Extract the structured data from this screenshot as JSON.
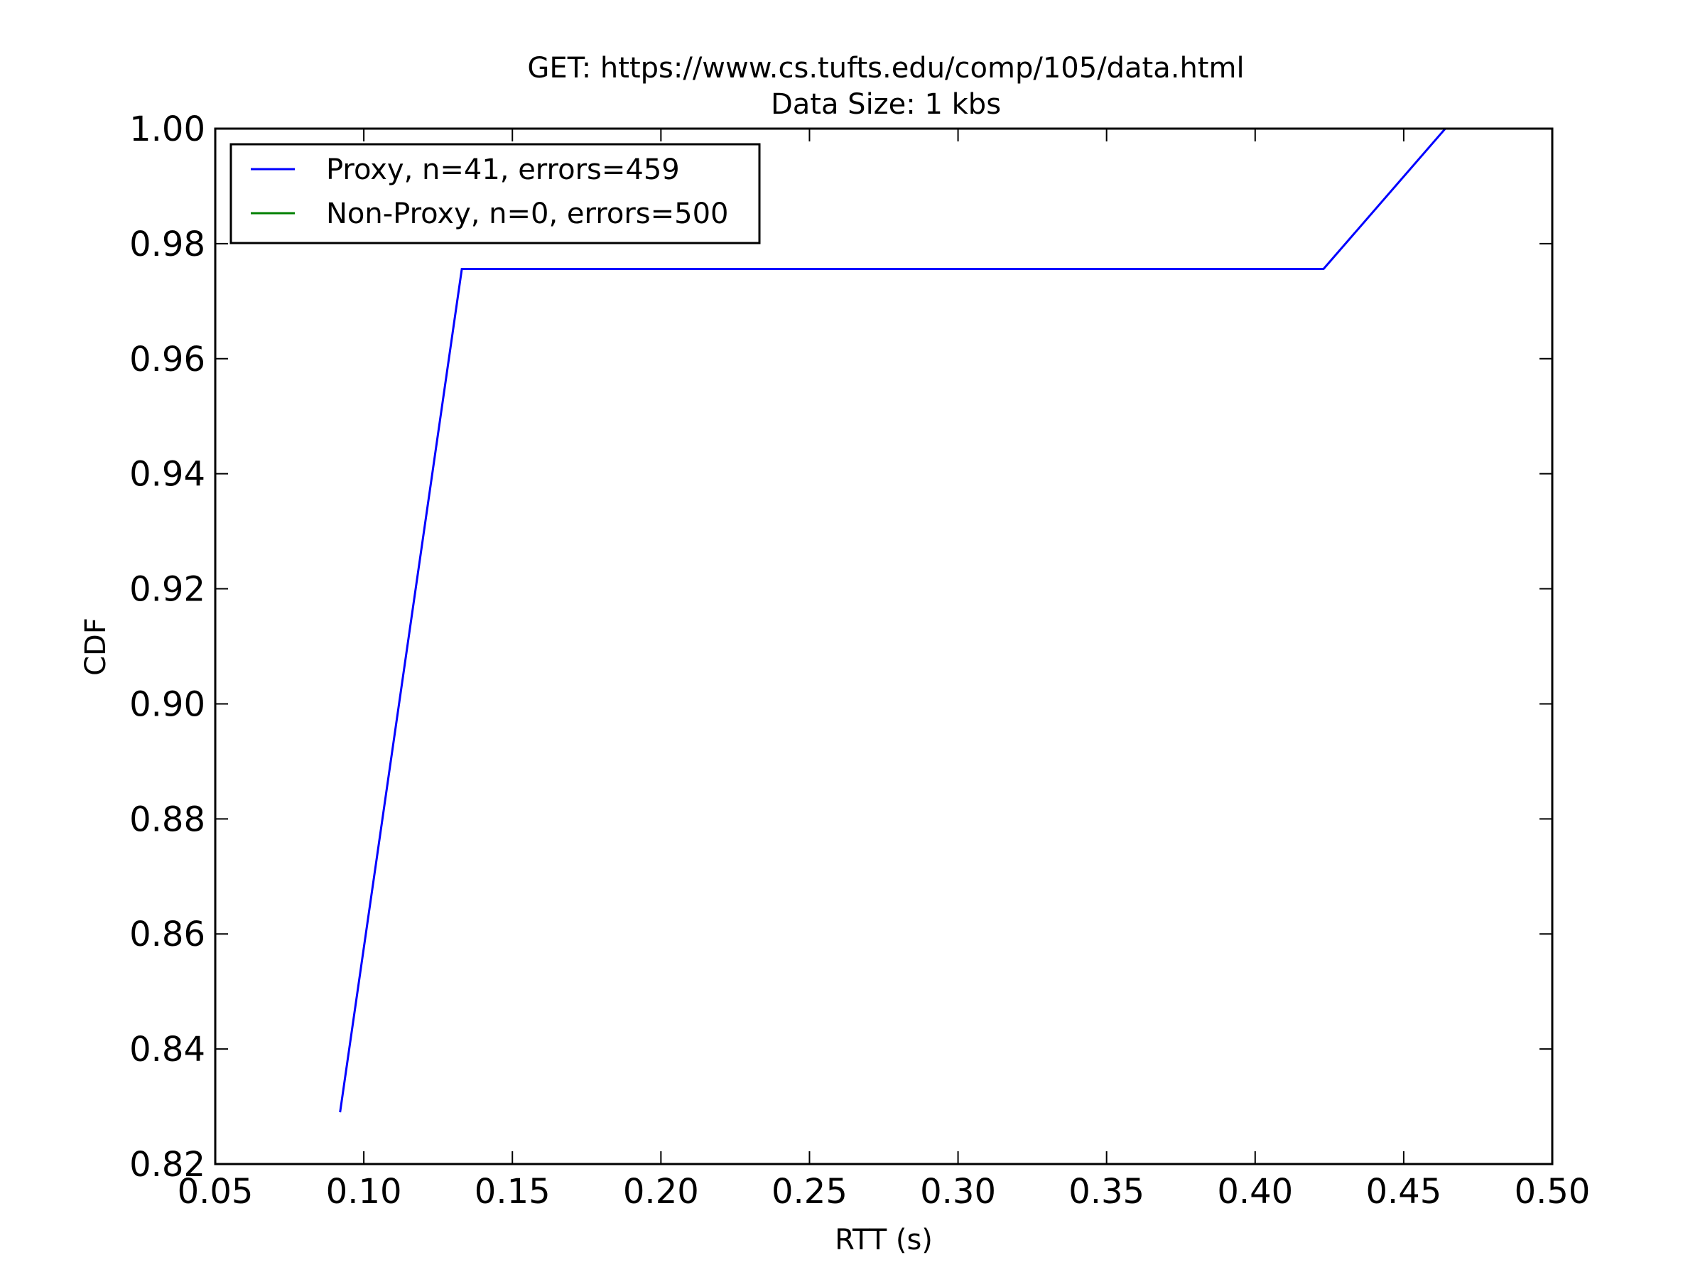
{
  "chart_data": {
    "type": "line",
    "title": "GET: https://www.cs.tufts.edu/comp/105/data.html",
    "subtitle": "Data Size: 1 kbs",
    "xlabel": "RTT (s)",
    "ylabel": "CDF",
    "xlim": [
      0.05,
      0.5
    ],
    "ylim": [
      0.82,
      1.0
    ],
    "xticks": [
      "0.05",
      "0.10",
      "0.15",
      "0.20",
      "0.25",
      "0.30",
      "0.35",
      "0.40",
      "0.45",
      "0.50"
    ],
    "yticks": [
      "0.82",
      "0.84",
      "0.86",
      "0.88",
      "0.90",
      "0.92",
      "0.94",
      "0.96",
      "0.98",
      "1.00"
    ],
    "grid": false,
    "legend_position": "top-left",
    "series": [
      {
        "name": "Proxy, n=41, errors=459",
        "color": "#0000ff",
        "x": [
          0.092,
          0.133,
          0.423,
          0.464
        ],
        "y": [
          0.829,
          0.9756,
          0.9756,
          1.0
        ]
      },
      {
        "name": "Non-Proxy, n=0, errors=500",
        "color": "#008000",
        "x": [],
        "y": []
      }
    ]
  }
}
